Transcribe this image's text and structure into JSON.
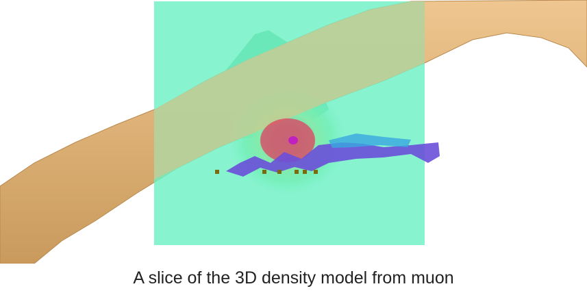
{
  "caption": "A slice of the 3D density model from muon"
}
